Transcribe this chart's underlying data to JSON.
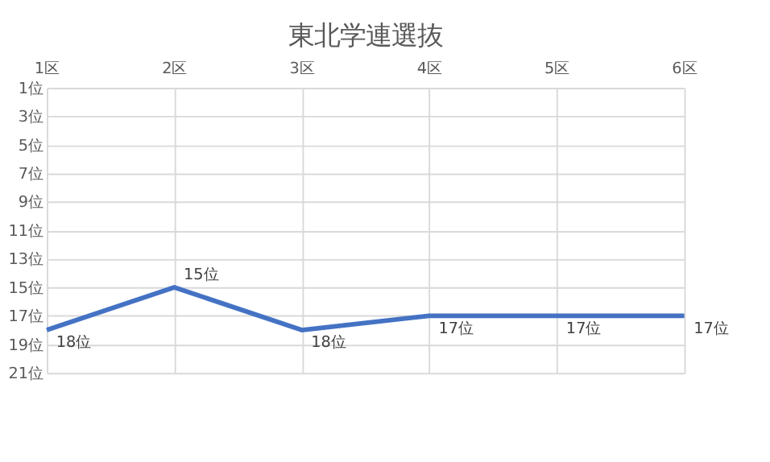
{
  "chart_data": {
    "type": "line",
    "title": "東北学連選抜",
    "categories": [
      "1区",
      "2区",
      "3区",
      "4区",
      "5区",
      "6区"
    ],
    "series": [
      {
        "color": "#4472c4",
        "values": [
          18,
          15,
          18,
          17,
          17,
          17
        ],
        "value_labels": [
          "18位",
          "15位",
          "18位",
          "17位",
          "17位",
          "17位"
        ]
      }
    ],
    "ylim": [
      21,
      1
    ],
    "yticks": [
      {
        "value": 1,
        "label": "1位"
      },
      {
        "value": 3,
        "label": "3位"
      },
      {
        "value": 5,
        "label": "5位"
      },
      {
        "value": 7,
        "label": "7位"
      },
      {
        "value": 9,
        "label": "9位"
      },
      {
        "value": 11,
        "label": "11位"
      },
      {
        "value": 13,
        "label": "13位"
      },
      {
        "value": 15,
        "label": "15位"
      },
      {
        "value": 17,
        "label": "17位"
      },
      {
        "value": 19,
        "label": "19位"
      },
      {
        "value": 21,
        "label": "21位"
      }
    ],
    "grid": true,
    "marker": "none",
    "line_style": "solid"
  }
}
